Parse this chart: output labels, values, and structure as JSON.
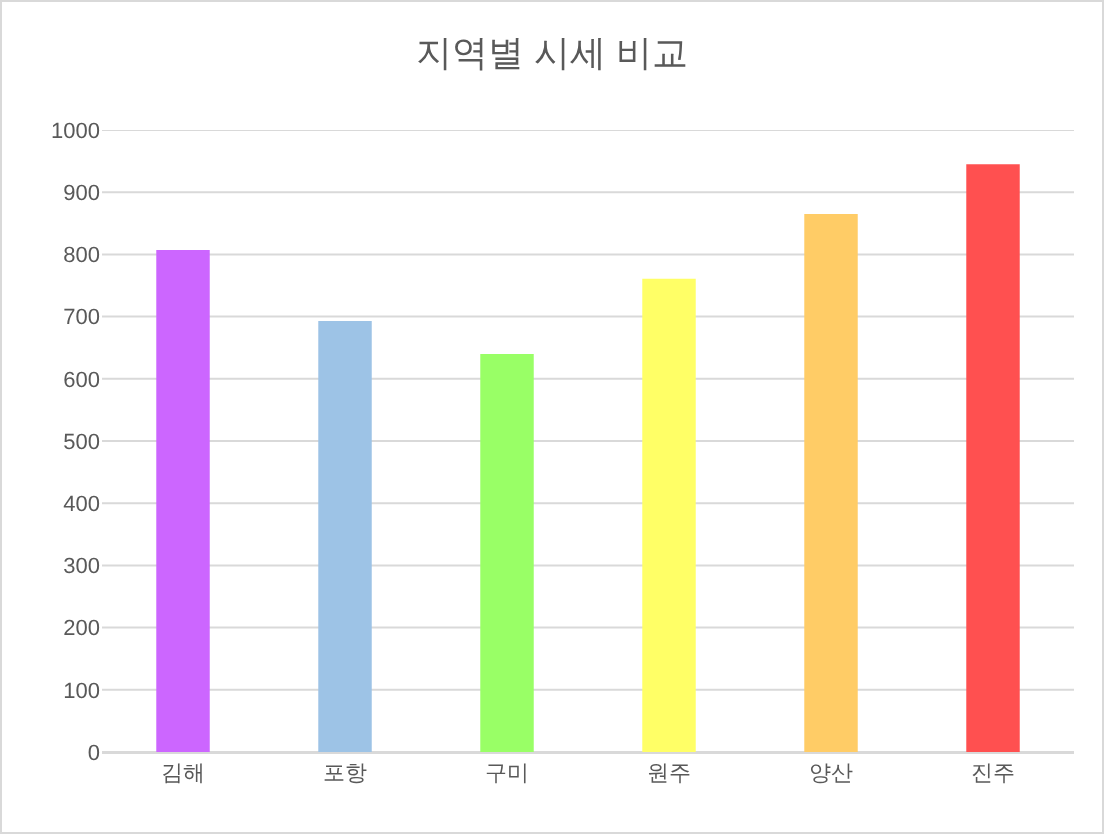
{
  "chart_data": {
    "type": "bar",
    "title": "지역별 시세 비교",
    "categories": [
      "김해",
      "포항",
      "구미",
      "원주",
      "양산",
      "진주"
    ],
    "values": [
      807,
      693,
      640,
      761,
      865,
      945
    ],
    "colors": [
      "#cc66ff",
      "#9dc3e6",
      "#99ff66",
      "#ffff66",
      "#ffcc66",
      "#ff5050"
    ],
    "ylim": [
      0,
      1000
    ],
    "yticks": [
      0,
      100,
      200,
      300,
      400,
      500,
      600,
      700,
      800,
      900,
      1000
    ],
    "grid": "y"
  }
}
